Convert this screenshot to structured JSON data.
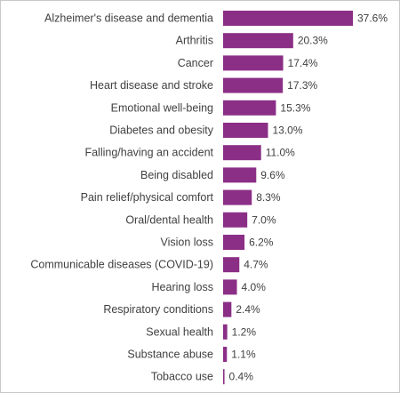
{
  "chart_data": {
    "type": "bar",
    "orientation": "horizontal",
    "title": "",
    "xlabel": "",
    "ylabel": "",
    "xlim": [
      0,
      40
    ],
    "grid": false,
    "legend": "none",
    "bar_color": "#8b2f86",
    "categories": [
      "Alzheimer's disease and dementia",
      "Arthritis",
      "Cancer",
      "Heart disease and stroke",
      "Emotional well-being",
      "Diabetes and obesity",
      "Falling/having an accident",
      "Being disabled",
      "Pain relief/physical comfort",
      "Oral/dental health",
      "Vision loss",
      "Communicable diseases (COVID-19)",
      "Hearing loss",
      "Respiratory conditions",
      "Sexual health",
      "Substance abuse",
      "Tobacco use"
    ],
    "values": [
      37.6,
      20.3,
      17.4,
      17.3,
      15.3,
      13.0,
      11.0,
      9.6,
      8.3,
      7.0,
      6.2,
      4.7,
      4.0,
      2.4,
      1.2,
      1.1,
      0.4
    ],
    "value_labels": [
      "37.6%",
      "20.3%",
      "17.4%",
      "17.3%",
      "15.3%",
      "13.0%",
      "11.0%",
      "9.6%",
      "8.3%",
      "7.0%",
      "6.2%",
      "4.7%",
      "4.0%",
      "2.4%",
      "1.2%",
      "1.1%",
      "0.4%"
    ]
  }
}
